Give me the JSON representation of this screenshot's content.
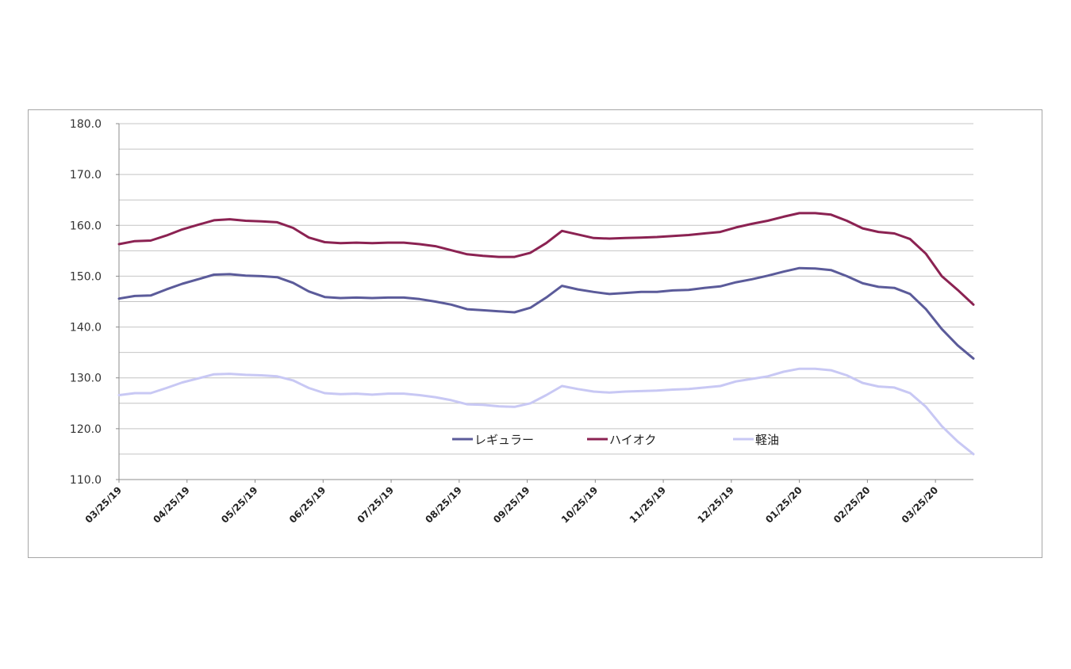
{
  "chart_data": {
    "type": "line",
    "title": "",
    "xlabel": "",
    "ylabel": "",
    "ylim": [
      110,
      180
    ],
    "y_ticks": [
      "110.0",
      "120.0",
      "130.0",
      "140.0",
      "150.0",
      "160.0",
      "170.0",
      "180.0"
    ],
    "x_tick_labels": [
      "03/25/19",
      "04/25/19",
      "05/25/19",
      "06/25/19",
      "07/25/19",
      "08/25/19",
      "09/25/19",
      "10/25/19",
      "11/25/19",
      "12/25/19",
      "01/25/20",
      "02/25/20",
      "03/25/20"
    ],
    "legend_position": "center-bottom",
    "series": [
      {
        "name": "レギュラー",
        "color": "#5b5b9a",
        "values": [
          145.6,
          146.1,
          146.2,
          147.4,
          148.5,
          149.4,
          150.3,
          150.4,
          150.1,
          150.0,
          149.8,
          148.7,
          147.0,
          145.9,
          145.7,
          145.8,
          145.7,
          145.8,
          145.8,
          145.5,
          145.0,
          144.4,
          143.5,
          143.3,
          143.1,
          142.9,
          143.8,
          145.8,
          148.1,
          147.4,
          146.9,
          146.5,
          146.7,
          146.9,
          146.9,
          147.2,
          147.3,
          147.7,
          148.0,
          148.8,
          149.4,
          150.1,
          150.9,
          151.6,
          151.5,
          151.2,
          150.0,
          148.6,
          147.9,
          147.7,
          146.5,
          143.5,
          139.6,
          136.4,
          133.8
        ]
      },
      {
        "name": "ハイオク",
        "color": "#8b2252",
        "values": [
          156.3,
          156.9,
          157.0,
          158.0,
          159.2,
          160.1,
          161.0,
          161.2,
          160.9,
          160.8,
          160.6,
          159.5,
          157.6,
          156.7,
          156.5,
          156.6,
          156.5,
          156.6,
          156.6,
          156.3,
          155.9,
          155.1,
          154.3,
          154.0,
          153.8,
          153.8,
          154.6,
          156.5,
          158.9,
          158.2,
          157.5,
          157.4,
          157.5,
          157.6,
          157.7,
          157.9,
          158.1,
          158.4,
          158.7,
          159.6,
          160.3,
          160.9,
          161.7,
          162.4,
          162.4,
          162.1,
          160.9,
          159.4,
          158.7,
          158.4,
          157.3,
          154.4,
          150.0,
          147.3,
          144.4
        ]
      },
      {
        "name": "軽油",
        "color": "#c8c8f4",
        "values": [
          126.6,
          127.0,
          127.0,
          128.0,
          129.1,
          129.9,
          130.7,
          130.8,
          130.6,
          130.5,
          130.3,
          129.5,
          128.0,
          127.0,
          126.8,
          126.9,
          126.7,
          126.9,
          126.9,
          126.6,
          126.2,
          125.6,
          124.8,
          124.7,
          124.4,
          124.3,
          125.0,
          126.6,
          128.4,
          127.8,
          127.3,
          127.1,
          127.3,
          127.4,
          127.5,
          127.7,
          127.8,
          128.1,
          128.4,
          129.3,
          129.8,
          130.3,
          131.2,
          131.8,
          131.8,
          131.5,
          130.5,
          129.0,
          128.3,
          128.1,
          127.0,
          124.3,
          120.5,
          117.5,
          115.0
        ]
      }
    ]
  }
}
